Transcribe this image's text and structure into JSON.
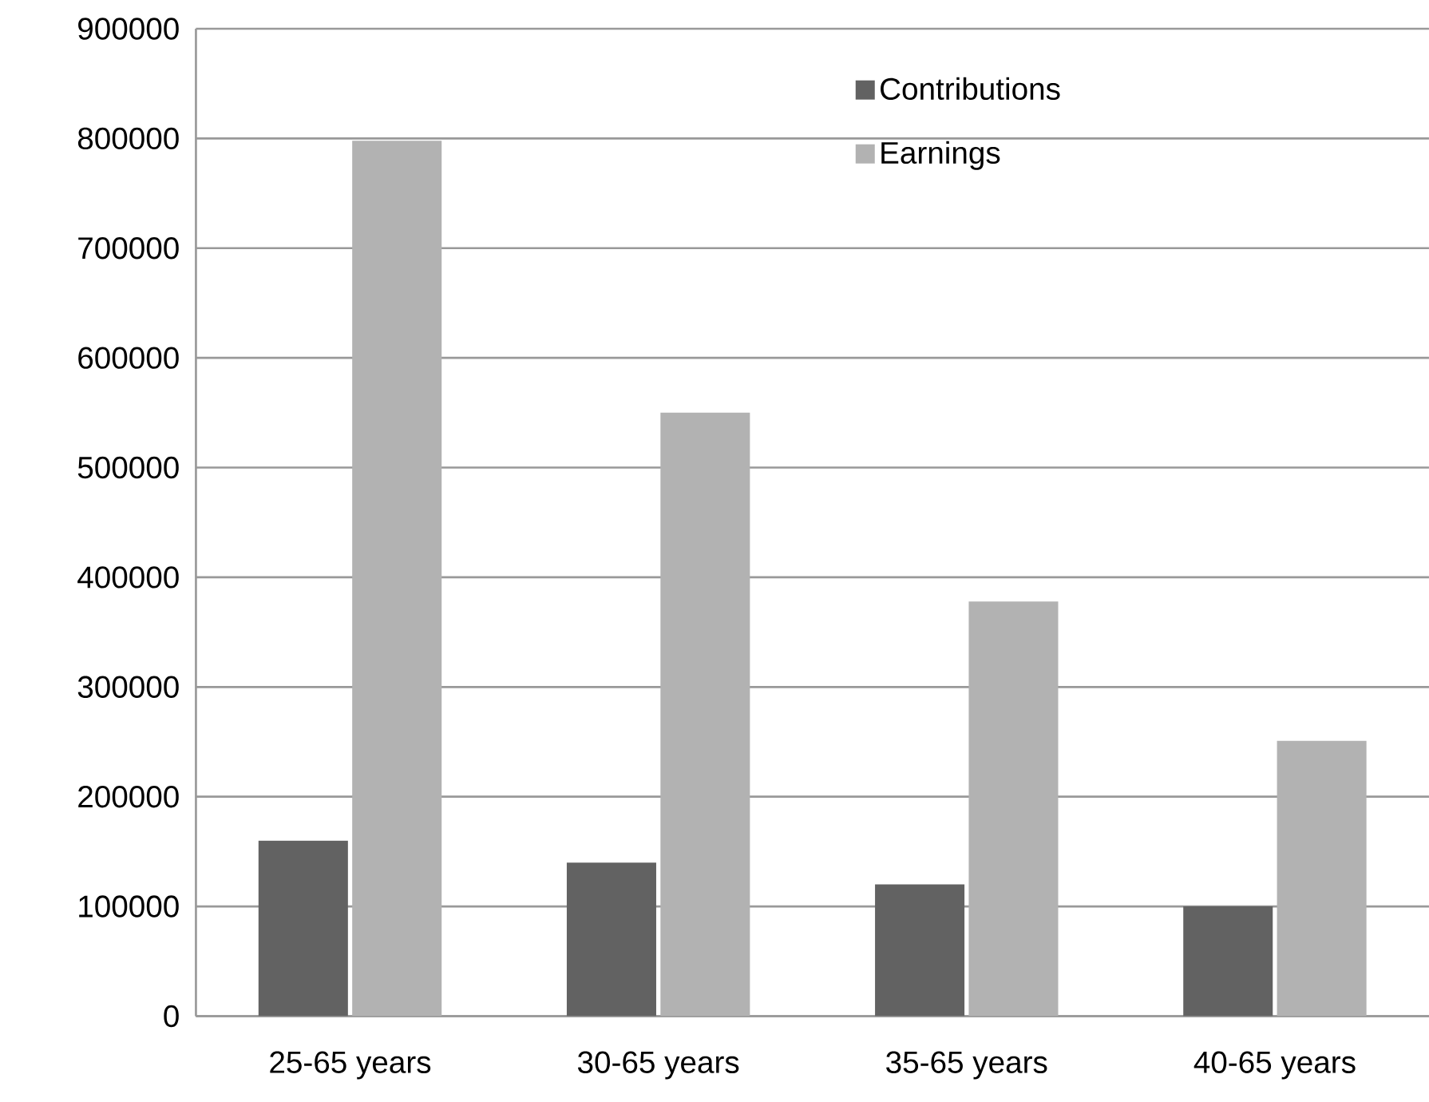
{
  "chart_data": {
    "type": "bar",
    "categories": [
      "25-65 years",
      "30-65 years",
      "35-65 years",
      "40-65 years"
    ],
    "series": [
      {
        "name": "Contributions",
        "color": "#626262",
        "values": [
          160000,
          140000,
          120000,
          100000
        ]
      },
      {
        "name": "Earnings",
        "color": "#b2b2b2",
        "values": [
          798000,
          550000,
          378000,
          251000
        ]
      }
    ],
    "ylim": [
      0,
      900000
    ],
    "yticks": [
      0,
      100000,
      200000,
      300000,
      400000,
      500000,
      600000,
      700000,
      800000,
      900000
    ],
    "grid": "y",
    "legend": "top"
  }
}
